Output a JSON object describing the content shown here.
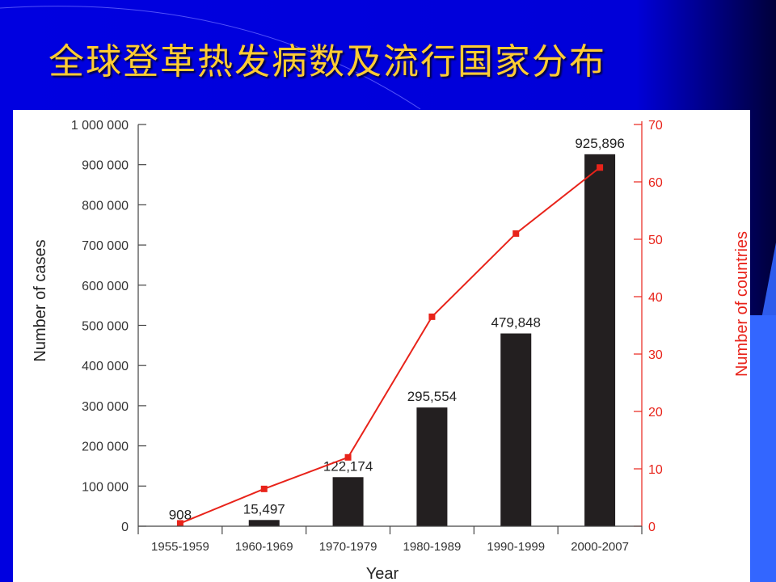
{
  "slide": {
    "title": "全球登革热发病数及流行国家分布",
    "background_color": "#0000e6",
    "title_color": "#ffcc33"
  },
  "chart_data": {
    "type": "bar",
    "categories": [
      "1955-1959",
      "1960-1969",
      "1970-1979",
      "1980-1989",
      "1990-1999",
      "2000-2007"
    ],
    "series": [
      {
        "type": "bar",
        "axis": "left",
        "values": [
          908,
          15497,
          122174,
          295554,
          479848,
          925896
        ],
        "labels": [
          "908",
          "15,497",
          "122,174",
          "295,554",
          "479,848",
          "925,896"
        ],
        "color": "#231f20"
      },
      {
        "type": "line",
        "axis": "right",
        "values": [
          0.5,
          6.5,
          12,
          36.5,
          51,
          62.5
        ],
        "color": "#e8231a"
      }
    ],
    "xlabel": "Year",
    "ylabel": "Number of cases",
    "y2label": "Number of countries",
    "ylim": [
      0,
      1000000
    ],
    "y2lim": [
      0,
      70
    ],
    "yticks": [
      "0",
      "100 000",
      "200 000",
      "300 000",
      "400 000",
      "500 000",
      "600 000",
      "700 000",
      "800 000",
      "900 000",
      "1 000 000"
    ],
    "y2ticks": [
      "0",
      "10",
      "20",
      "30",
      "40",
      "50",
      "60",
      "70"
    ]
  }
}
